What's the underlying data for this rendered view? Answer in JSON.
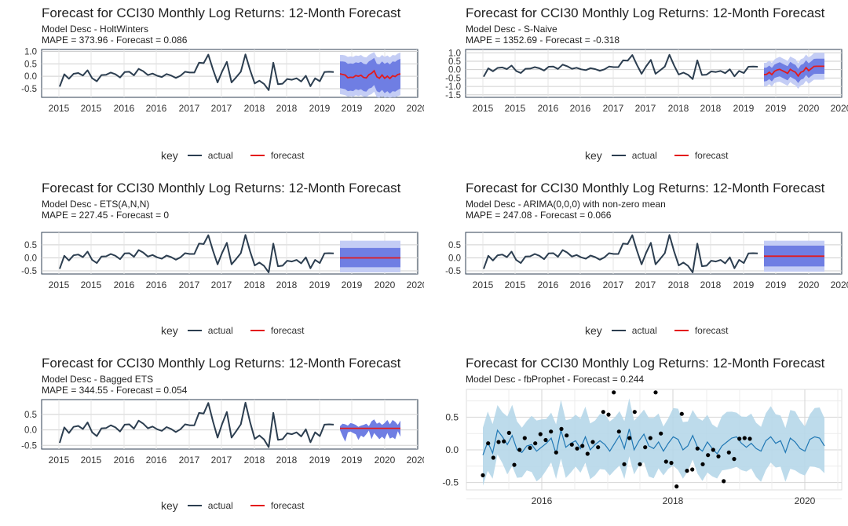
{
  "colors": {
    "actual": "#2c3e50",
    "forecast": "#e31a1c",
    "ci95": "#c4cdf5",
    "ci80": "#6f7ee3",
    "prophet_band": "#b6d7e9",
    "prophet_line": "#1f77b4"
  },
  "legend": {
    "title": "key",
    "actual": "actual",
    "forecast": "forecast"
  },
  "actual": [
    -0.42,
    0.08,
    -0.1,
    0.1,
    0.13,
    0.03,
    0.24,
    -0.08,
    -0.2,
    0.05,
    0.06,
    0.15,
    0.08,
    -0.05,
    0.17,
    0.18,
    0.04,
    0.3,
    0.2,
    0.05,
    0.11,
    0.02,
    -0.03,
    0.09,
    0.03,
    -0.07,
    0.02,
    0.18,
    0.15,
    0.15,
    0.55,
    0.53,
    0.87,
    0.28,
    -0.25,
    0.2,
    0.58,
    -0.25,
    -0.04,
    0.18,
    0.88,
    0.25,
    -0.29,
    -0.18,
    -0.31,
    -0.56,
    0.55,
    -0.32,
    -0.3,
    -0.11,
    -0.14,
    -0.08,
    -0.21,
    0.02,
    -0.4,
    -0.08,
    -0.2,
    0.17,
    0.18,
    0.17
  ],
  "charts": [
    {
      "title": "Forecast for CCI30 Monthly Log Returns: 12-Month Forecast",
      "desc": "Model Desc - HoltWinters",
      "metrics": "MAPE = 373.96 - Forecast = 0.086",
      "ylim": [
        -0.85,
        1.08
      ],
      "yticks": [
        1.0,
        0.5,
        0.0,
        -0.5
      ],
      "yticklabels": [
        "1.0",
        "0.5",
        "0.0",
        "-0.5"
      ],
      "forecast": [
        0.1,
        0.07,
        0.05,
        -0.06,
        -0.04,
        -0.05,
        0.03,
        0.0,
        0.04,
        -0.05,
        -0.07,
        0.06,
        0.12,
        0.22,
        -0.02,
        -0.08,
        0.05,
        -0.08,
        0.0,
        -0.09,
        0.02,
        -0.01,
        0.07,
        0.1
      ],
      "lo80": [
        -0.48,
        -0.5,
        -0.52,
        -0.6,
        -0.58,
        -0.6,
        -0.52,
        -0.56,
        -0.52,
        -0.6,
        -0.62,
        -0.5,
        -0.46,
        -0.35,
        -0.6,
        -0.65,
        -0.55,
        -0.68,
        -0.6,
        -0.7,
        -0.6,
        -0.62,
        -0.55,
        -0.5
      ],
      "hi80": [
        0.6,
        0.6,
        0.58,
        0.5,
        0.52,
        0.5,
        0.56,
        0.54,
        0.58,
        0.5,
        0.48,
        0.6,
        0.66,
        0.74,
        0.5,
        0.48,
        0.6,
        0.5,
        0.56,
        0.48,
        0.6,
        0.58,
        0.66,
        0.7
      ],
      "lo95": [
        -0.72,
        -0.74,
        -0.76,
        -0.82,
        -0.8,
        -0.82,
        -0.76,
        -0.8,
        -0.76,
        -0.82,
        -0.84,
        -0.76,
        -0.72,
        -0.62,
        -0.84,
        -0.86,
        -0.8,
        -0.86,
        -0.84,
        -0.86,
        -0.84,
        -0.85,
        -0.8,
        -0.76
      ],
      "hi95": [
        0.86,
        0.86,
        0.84,
        0.78,
        0.8,
        0.78,
        0.84,
        0.82,
        0.86,
        0.78,
        0.76,
        0.86,
        0.92,
        0.98,
        0.78,
        0.76,
        0.86,
        0.78,
        0.84,
        0.76,
        0.86,
        0.84,
        0.92,
        0.96
      ]
    },
    {
      "title": "Forecast for CCI30 Monthly Log Returns: 12-Month Forecast",
      "desc": "Model Desc - S-Naive",
      "metrics": "MAPE = 1352.69 - Forecast = -0.318",
      "ylim": [
        -1.65,
        1.2
      ],
      "yticks": [
        1.0,
        0.5,
        0.0,
        -0.5,
        -1.0,
        -1.5
      ],
      "yticklabels": [
        "1.0",
        "0.5",
        "0.0",
        "-0.5",
        "-1.0",
        "-1.5"
      ],
      "forecast": [
        -0.3,
        -0.28,
        -0.16,
        -0.3,
        -0.1,
        -0.02,
        0.02,
        -0.06,
        -0.14,
        -0.22,
        0.02,
        -0.08,
        -0.16,
        -0.38,
        -0.16,
        -0.1,
        0.12,
        -0.06,
        0.06,
        0.19,
        0.2,
        0.2,
        0.2,
        0.2
      ],
      "lo80": [
        -0.7,
        -0.68,
        -0.56,
        -0.7,
        -0.5,
        -0.44,
        -0.4,
        -0.48,
        -0.56,
        -0.64,
        -0.42,
        -0.52,
        -0.6,
        -0.8,
        -0.6,
        -0.54,
        -0.32,
        -0.5,
        -0.38,
        -0.26,
        -0.25,
        -0.25,
        -0.25,
        -0.25
      ],
      "hi80": [
        0.1,
        0.12,
        0.24,
        0.1,
        0.3,
        0.38,
        0.44,
        0.36,
        0.28,
        0.2,
        0.46,
        0.36,
        0.28,
        0.04,
        0.28,
        0.34,
        0.56,
        0.38,
        0.5,
        0.64,
        0.65,
        0.65,
        0.65,
        0.65
      ],
      "lo95": [
        -1.0,
        -0.98,
        -0.86,
        -1.0,
        -0.8,
        -0.74,
        -0.72,
        -0.8,
        -0.88,
        -0.96,
        -0.74,
        -0.86,
        -0.94,
        -1.14,
        -0.94,
        -0.88,
        -0.66,
        -0.84,
        -0.72,
        -0.6,
        -0.6,
        -0.6,
        -0.6,
        -0.6
      ],
      "hi95": [
        0.4,
        0.42,
        0.54,
        0.4,
        0.6,
        0.7,
        0.76,
        0.68,
        0.6,
        0.52,
        0.78,
        0.7,
        0.62,
        0.38,
        0.62,
        0.68,
        0.9,
        0.72,
        0.84,
        0.98,
        1.0,
        1.0,
        1.0,
        1.0
      ]
    },
    {
      "title": "Forecast for CCI30 Monthly Log Returns: 12-Month Forecast",
      "desc": "Model Desc - ETS(A,N,N)",
      "metrics": "MAPE = 227.45 - Forecast = 0",
      "ylim": [
        -0.62,
        0.98
      ],
      "yticks": [
        0.5,
        0.0,
        -0.5
      ],
      "yticklabels": [
        "0.5",
        "0.0",
        "-0.5"
      ],
      "forecast": [
        0.0,
        0.0
      ],
      "lo80": [
        -0.36,
        -0.36
      ],
      "hi80": [
        0.38,
        0.38
      ],
      "lo95": [
        -0.56,
        -0.56
      ],
      "hi95": [
        0.66,
        0.66
      ]
    },
    {
      "title": "Forecast for CCI30 Monthly Log Returns: 12-Month Forecast",
      "desc": "Model Desc - ARIMA(0,0,0) with non-zero mean",
      "metrics": "MAPE = 247.08 - Forecast = 0.066",
      "ylim": [
        -0.62,
        0.98
      ],
      "yticks": [
        0.5,
        0.0,
        -0.5
      ],
      "yticklabels": [
        "0.5",
        "0.0",
        "-0.5"
      ],
      "forecast": [
        0.066,
        0.066
      ],
      "lo80": [
        -0.33,
        -0.33
      ],
      "hi80": [
        0.47,
        0.47
      ],
      "lo95": [
        -0.53,
        -0.53
      ],
      "hi95": [
        0.66,
        0.66
      ]
    },
    {
      "title": "Forecast for CCI30 Monthly Log Returns: 12-Month Forecast",
      "desc": "Model Desc - Bagged ETS",
      "metrics": "MAPE = 344.55 - Forecast = 0.054",
      "ylim": [
        -0.62,
        0.98
      ],
      "yticks": [
        0.5,
        0.0,
        -0.5
      ],
      "yticklabels": [
        "0.5",
        "0.0",
        "-0.5"
      ],
      "forecast": [
        0.05,
        0.05,
        0.05,
        0.05,
        0.05,
        0.05,
        0.05,
        0.05,
        0.05,
        0.05,
        0.05,
        0.05,
        0.05,
        0.05,
        0.05,
        0.05,
        0.05,
        0.05,
        0.05,
        0.05,
        0.05,
        0.05,
        0.05,
        0.05
      ],
      "lo80": [
        0.0,
        -0.2,
        -0.38,
        -0.08,
        -0.05,
        -0.1,
        -0.14,
        -0.32,
        -0.18,
        -0.24,
        -0.14,
        -0.02,
        -0.3,
        -0.1,
        -0.2,
        -0.3,
        -0.22,
        -0.3,
        -0.1,
        -0.28,
        -0.24,
        -0.3,
        -0.04,
        -0.22
      ],
      "hi80": [
        0.12,
        0.2,
        0.18,
        0.14,
        0.22,
        0.2,
        0.16,
        0.1,
        0.14,
        0.16,
        0.2,
        0.12,
        0.28,
        0.34,
        0.2,
        0.24,
        0.16,
        0.22,
        0.32,
        0.18,
        0.32,
        0.26,
        0.16,
        0.3
      ],
      "lo95": [
        0.0,
        -0.2,
        -0.38,
        -0.08,
        -0.05,
        -0.1,
        -0.14,
        -0.32,
        -0.18,
        -0.24,
        -0.14,
        -0.02,
        -0.3,
        -0.1,
        -0.2,
        -0.3,
        -0.22,
        -0.3,
        -0.1,
        -0.28,
        -0.24,
        -0.3,
        -0.04,
        -0.22
      ],
      "hi95": [
        0.12,
        0.2,
        0.18,
        0.14,
        0.22,
        0.2,
        0.16,
        0.1,
        0.14,
        0.16,
        0.2,
        0.12,
        0.28,
        0.34,
        0.2,
        0.24,
        0.16,
        0.22,
        0.32,
        0.18,
        0.32,
        0.26,
        0.16,
        0.3
      ]
    },
    {
      "title": "Forecast for CCI30 Monthly Log Returns: 12-Month Forecast",
      "desc": "Model Desc - fbProphet - Forecast = 0.244",
      "xticklabels": [
        "2016",
        "2018",
        "2020"
      ],
      "yticklabels": [
        "0.5",
        "0.0",
        "-0.5"
      ],
      "yhat": [
        -0.08,
        0.12,
        -0.05,
        0.3,
        0.2,
        0.08,
        0.22,
        0.0,
        -0.04,
        0.06,
        0.08,
        -0.02,
        0.04,
        0.1,
        0.18,
        -0.06,
        0.3,
        0.04,
        0.1,
        0.14,
        0.02,
        0.2,
        0.0,
        0.08,
        0.14,
        0.08,
        -0.02,
        0.1,
        0.22,
        0.02,
        0.32,
        0.0,
        0.14,
        0.24,
        0.06,
        0.02,
        0.12,
        -0.02,
        0.1,
        0.2,
        0.16,
        0.0,
        0.06,
        0.22,
        0.04,
        -0.02,
        0.12,
        0.02,
        -0.06,
        0.06,
        0.12,
        0.18,
        0.2,
        0.1,
        0.04,
        0.1,
        0.02,
        -0.02,
        0.14,
        0.2,
        0.1,
        0.14,
        -0.04,
        0.18,
        0.12,
        0.02,
        -0.02,
        0.16,
        0.2,
        0.18,
        0.06
      ],
      "points": [
        -0.39,
        0.1,
        -0.12,
        0.12,
        0.13,
        0.26,
        -0.23,
        0.0,
        0.18,
        0.03,
        0.1,
        0.24,
        0.15,
        0.28,
        -0.04,
        0.32,
        0.22,
        0.08,
        0.02,
        0.06,
        -0.06,
        0.12,
        0.04,
        0.58,
        0.54,
        0.88,
        0.28,
        -0.22,
        0.18,
        0.58,
        -0.22,
        0.04,
        0.18,
        0.88,
        0.25,
        -0.18,
        -0.2,
        -0.56,
        0.55,
        -0.32,
        -0.3,
        0.02,
        -0.22,
        -0.08,
        0.0,
        -0.1,
        -0.48,
        -0.04,
        -0.14,
        0.17,
        0.18,
        0.17
      ]
    }
  ]
}
